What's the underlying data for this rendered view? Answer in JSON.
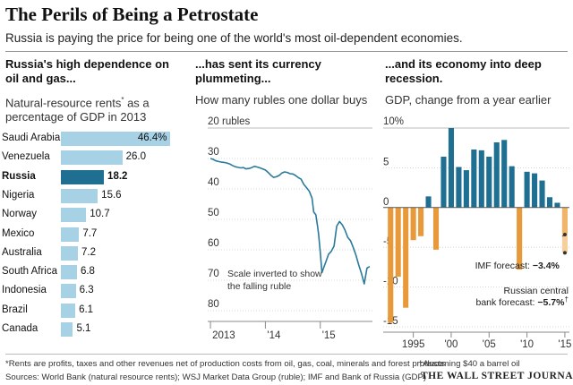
{
  "title": "The Perils of Being a Petrostate",
  "subtitle": "Russia is paying the price for being one of the world's most oil-dependent economies.",
  "colors": {
    "bar": "#a7d2e6",
    "highlight": "#1f6f92",
    "line": "#2a7a9a",
    "gdp": "#1f6f92",
    "neg": "#e89a3a",
    "forecast": "#f5cf9c"
  },
  "chart_data": [
    {
      "type": "bar",
      "header": "Russia's high dependence on oil and gas...",
      "subtitle_pre": "Natural-resource rents",
      "subtitle_mark": "*",
      "subtitle_post": "as a percentage of GDP in 2013",
      "categories": [
        "Saudi Arabia",
        "Venezuela",
        "Russia",
        "Nigeria",
        "Norway",
        "Mexico",
        "Australia",
        "South Africa",
        "Indonesia",
        "Brazil",
        "Canada"
      ],
      "values": [
        46.4,
        26.0,
        18.2,
        15.6,
        10.7,
        7.7,
        7.2,
        6.8,
        6.3,
        6.1,
        5.1
      ],
      "labels": [
        "46.4%",
        "26.0",
        "18.2",
        "15.6",
        "10.7",
        "7.7",
        "7.2",
        "6.8",
        "6.3",
        "6.1",
        "5.1"
      ],
      "highlight": "Russia",
      "xlim": [
        0,
        50
      ]
    },
    {
      "type": "line",
      "header": "...has sent its currency plummeting...",
      "subtitle": "How many rubles one dollar buys",
      "unit_label": "20 rubles",
      "yticks": [
        "30",
        "40",
        "50",
        "60",
        "70",
        "80"
      ],
      "yticks_values": [
        30,
        40,
        50,
        60,
        70,
        80
      ],
      "ylim": [
        20,
        80
      ],
      "y_inverted": true,
      "xticks": [
        "2013",
        "'14",
        "'15"
      ],
      "xticks_values": [
        2013,
        2014,
        2015
      ],
      "xlim": [
        2012.95,
        2015.95
      ],
      "annotation": "Scale inverted to show the falling ruble",
      "series": [
        {
          "name": "Rubles per dollar",
          "x": [
            2013.0,
            2013.05,
            2013.1,
            2013.15,
            2013.2,
            2013.25,
            2013.3,
            2013.35,
            2013.4,
            2013.45,
            2013.5,
            2013.55,
            2013.6,
            2013.65,
            2013.7,
            2013.75,
            2013.8,
            2013.85,
            2013.9,
            2013.95,
            2014.0,
            2014.05,
            2014.1,
            2014.15,
            2014.2,
            2014.25,
            2014.3,
            2014.35,
            2014.4,
            2014.45,
            2014.5,
            2014.55,
            2014.6,
            2014.65,
            2014.7,
            2014.75,
            2014.8,
            2014.85,
            2014.88,
            2014.92,
            2014.95,
            2014.97,
            2015.0,
            2015.03,
            2015.06,
            2015.1,
            2015.15,
            2015.2,
            2015.25,
            2015.3,
            2015.35,
            2015.4,
            2015.45,
            2015.5,
            2015.55,
            2015.6,
            2015.65,
            2015.7,
            2015.75,
            2015.8,
            2015.85,
            2015.9
          ],
          "y": [
            30.0,
            30.3,
            30.8,
            31.0,
            31.2,
            31.3,
            31.5,
            31.8,
            32.3,
            32.7,
            32.9,
            33.1,
            33.0,
            33.4,
            33.3,
            33.0,
            32.6,
            32.8,
            33.1,
            33.4,
            33.8,
            34.6,
            35.5,
            36.2,
            36.0,
            35.6,
            34.8,
            34.4,
            34.6,
            35.0,
            35.1,
            35.6,
            36.3,
            36.8,
            38.5,
            39.6,
            40.8,
            43.0,
            47.6,
            48.5,
            52.3,
            55.0,
            60.7,
            67.5,
            66.0,
            64.0,
            61.5,
            60.5,
            58.8,
            52.2,
            50.7,
            51.8,
            53.5,
            55.9,
            57.0,
            59.2,
            61.8,
            65.0,
            67.7,
            71.2,
            66.0,
            65.5
          ]
        }
      ]
    },
    {
      "type": "bar",
      "header": "...and its economy into deep recession.",
      "subtitle": "GDP, change from a year earlier",
      "unit_label": "10%",
      "yticks": [
        "5",
        "0",
        "-5",
        "-10",
        "-15"
      ],
      "yticks_values": [
        5,
        0,
        -5,
        -10,
        -15
      ],
      "ylim": [
        -15,
        10
      ],
      "xticks": [
        "1995",
        "'00",
        "'05",
        "'10",
        "'15"
      ],
      "xticks_values": [
        1995,
        2000,
        2005,
        2010,
        2015
      ],
      "xlim": [
        1991.5,
        2015.6
      ],
      "categories": [
        1992,
        1993,
        1994,
        1995,
        1996,
        1997,
        1998,
        1999,
        2000,
        2001,
        2002,
        2003,
        2004,
        2005,
        2006,
        2007,
        2008,
        2009,
        2010,
        2011,
        2012,
        2013,
        2014,
        2015
      ],
      "values": [
        -14.5,
        -8.7,
        -12.6,
        -4.1,
        -3.6,
        1.4,
        -5.3,
        6.4,
        10.0,
        5.1,
        4.7,
        7.3,
        7.2,
        6.4,
        8.2,
        8.5,
        5.2,
        -7.8,
        4.5,
        4.3,
        3.4,
        1.3,
        0.6,
        -3.4
      ],
      "forecast_extension": -5.7,
      "annotations": [
        {
          "pre": "IMF forecast:",
          "bold": "−3.4%"
        },
        {
          "line1": "Russian central",
          "pre": "bank forecast:",
          "bold": "−5.7%",
          "mark": "†"
        }
      ]
    }
  ],
  "footnotes": {
    "rents": "*Rents are profits, taxes and other revenues net of production costs from oil, gas, coal, minerals and forest products",
    "assumption": "†Assuming $40 a barrel oil",
    "sources": "Sources: World Bank (natural resource rents); WSJ Market Data Group (ruble); IMF and Bank of Russia (GDP)"
  },
  "brand": "THE WALL STREET JOURNAL."
}
